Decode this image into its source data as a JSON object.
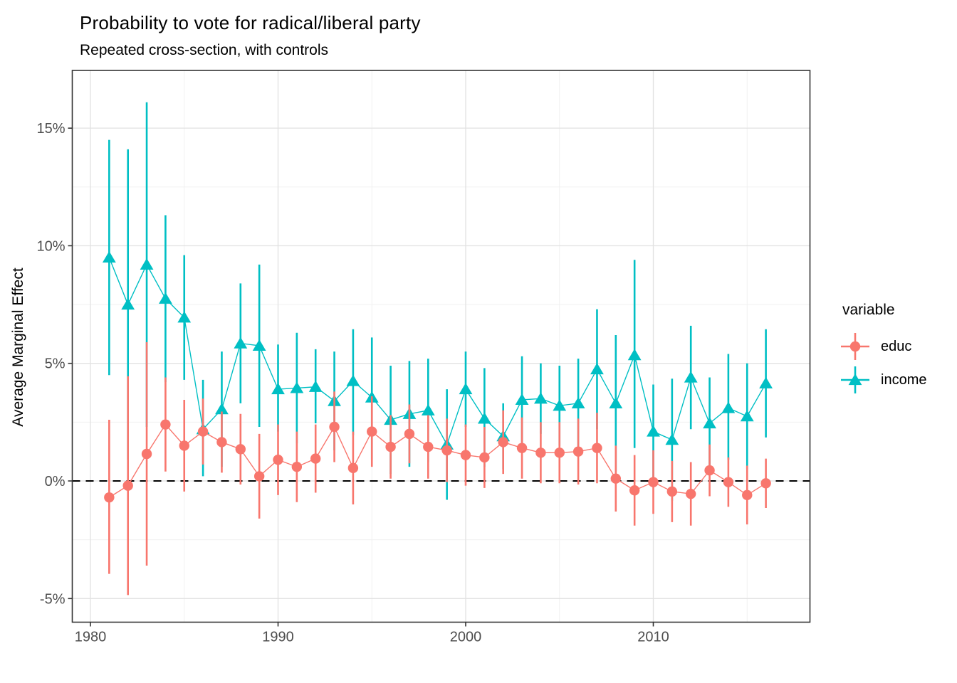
{
  "title": "Probability to vote for radical/liberal party",
  "subtitle": "Repeated cross-section, with controls",
  "y_axis": {
    "label": "Average Marginal Effect",
    "tick_labels": [
      "15%",
      "10%",
      "5%",
      "0%",
      "-5%"
    ],
    "tick_values": [
      15,
      10,
      5,
      0,
      -5
    ],
    "minor_values": [
      12.5,
      7.5,
      2.5,
      -2.5
    ]
  },
  "x_axis": {
    "label": "",
    "tick_labels": [
      "1980",
      "1990",
      "2000",
      "2010"
    ],
    "tick_values": [
      1980,
      1990,
      2000,
      2010
    ],
    "minor_values": [
      1985,
      1995,
      2005,
      2015
    ]
  },
  "legend": {
    "title": "variable",
    "items": [
      {
        "label": "educ",
        "shape": "circle",
        "color": "#F8766D"
      },
      {
        "label": "income",
        "shape": "triangle",
        "color": "#00BFC4"
      }
    ]
  },
  "reference_line": {
    "value": 0,
    "style": "dashed",
    "color": "#000000"
  },
  "panel": {
    "background": "#ffffff",
    "border_color": "#333333",
    "grid_major_color": "#e2e2e2",
    "grid_minor_color": "#efefef",
    "tick_color": "#333333"
  },
  "chart_data": {
    "type": "pointrange-line",
    "title": "Probability to vote for radical/liberal party",
    "subtitle": "Repeated cross-section, with controls",
    "xlabel": "",
    "ylabel": "Average Marginal Effect",
    "ylim": [
      -6.1,
      17.4
    ],
    "xlim": [
      1979,
      2018.4
    ],
    "grid": true,
    "legend_position": "right",
    "units": "percent",
    "x": [
      1981,
      1982,
      1983,
      1984,
      1985,
      1986,
      1987,
      1988,
      1989,
      1990,
      1991,
      1992,
      1993,
      1994,
      1995,
      1996,
      1997,
      1998,
      1999,
      2000,
      2001,
      2002,
      2003,
      2004,
      2005,
      2006,
      2007,
      2008,
      2009,
      2010,
      2011,
      2012,
      2013,
      2014,
      2015,
      2016
    ],
    "series": [
      {
        "name": "educ",
        "color": "#F8766D",
        "marker": "circle",
        "values": [
          -0.7,
          -0.2,
          1.15,
          2.4,
          1.5,
          2.1,
          1.65,
          1.35,
          0.2,
          0.9,
          0.6,
          0.95,
          2.3,
          0.55,
          2.1,
          1.45,
          2.0,
          1.45,
          1.3,
          1.1,
          1.0,
          1.65,
          1.4,
          1.2,
          1.2,
          1.25,
          1.4,
          0.1,
          -0.4,
          -0.05,
          -0.45,
          -0.55,
          0.45,
          -0.05,
          -0.6,
          -0.1
        ],
        "ci_low": [
          -3.95,
          -4.85,
          -3.6,
          0.4,
          -0.45,
          0.7,
          0.35,
          -0.15,
          -1.6,
          -0.6,
          -0.9,
          -0.5,
          0.8,
          -1.0,
          0.6,
          0.1,
          0.75,
          0.1,
          -0.05,
          -0.2,
          -0.3,
          0.3,
          0.1,
          -0.1,
          -0.1,
          -0.15,
          -0.1,
          -1.3,
          -1.9,
          -1.4,
          -1.75,
          -1.9,
          -0.65,
          -1.1,
          -1.85,
          -1.15
        ],
        "ci_high": [
          2.6,
          4.45,
          5.9,
          4.4,
          3.45,
          3.5,
          2.95,
          2.85,
          2.0,
          2.4,
          2.1,
          2.4,
          3.8,
          2.1,
          3.6,
          2.8,
          3.25,
          2.8,
          2.65,
          2.4,
          2.3,
          3.0,
          2.7,
          2.5,
          2.5,
          2.65,
          2.9,
          1.5,
          1.1,
          1.3,
          0.85,
          0.8,
          1.55,
          1.0,
          0.65,
          0.95
        ]
      },
      {
        "name": "income",
        "color": "#00BFC4",
        "marker": "triangle",
        "values": [
          9.5,
          7.5,
          9.2,
          7.75,
          6.95,
          2.2,
          3.05,
          5.85,
          5.75,
          3.9,
          3.95,
          4.0,
          3.4,
          4.25,
          3.55,
          2.6,
          2.85,
          3.0,
          1.55,
          3.9,
          2.65,
          1.9,
          3.45,
          3.5,
          3.2,
          3.3,
          4.75,
          3.3,
          5.35,
          2.1,
          1.75,
          4.4,
          2.45,
          3.1,
          2.75,
          4.15
        ],
        "ci_low": [
          4.5,
          0.9,
          2.3,
          4.2,
          4.3,
          0.2,
          0.6,
          3.3,
          2.3,
          2.1,
          1.6,
          2.45,
          1.3,
          1.95,
          0.9,
          0.3,
          0.6,
          0.8,
          -0.8,
          2.3,
          0.6,
          0.5,
          1.6,
          2.0,
          1.5,
          1.4,
          2.2,
          0.4,
          1.4,
          0.1,
          -0.85,
          2.2,
          0.5,
          0.9,
          0.5,
          1.85
        ],
        "ci_high": [
          14.5,
          14.1,
          16.1,
          11.3,
          9.6,
          4.3,
          5.5,
          8.4,
          9.2,
          5.8,
          6.3,
          5.6,
          5.5,
          6.45,
          6.1,
          4.9,
          5.1,
          5.2,
          3.9,
          5.5,
          4.8,
          3.3,
          5.3,
          5.0,
          4.9,
          5.2,
          7.3,
          6.2,
          9.4,
          4.1,
          4.35,
          6.6,
          4.4,
          5.4,
          5.0,
          6.45
        ]
      }
    ]
  }
}
